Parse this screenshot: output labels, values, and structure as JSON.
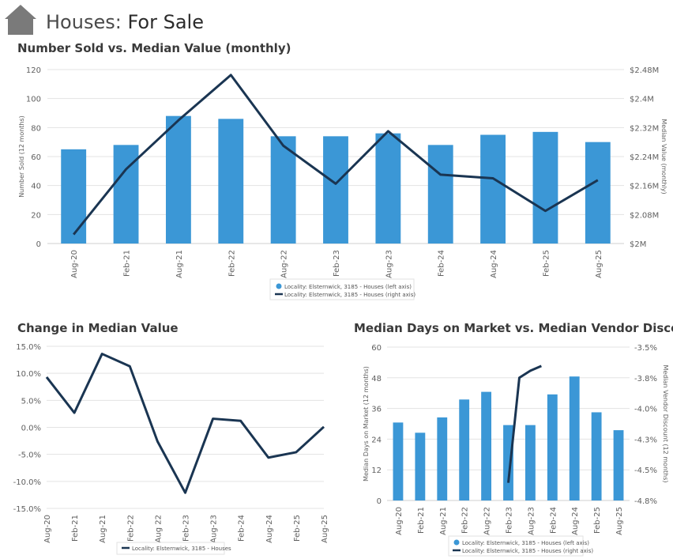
{
  "header": {
    "title_prefix": "Houses:",
    "title_main": "For Sale",
    "icon": "house-icon"
  },
  "colors": {
    "bar": "#3b97d6",
    "line": "#1a3552",
    "grid": "#e3e3e3",
    "axis_text": "#606060",
    "header_icon": "#7a7a7a"
  },
  "chart_data": [
    {
      "id": "sold-vs-value",
      "type": "bar+line",
      "title": "Number Sold vs. Median Value (monthly)",
      "categories": [
        "Aug-20",
        "Feb-21",
        "Aug-21",
        "Feb-22",
        "Aug-22",
        "Feb-23",
        "Aug-23",
        "Feb-24",
        "Aug-24",
        "Feb-25",
        "Aug-25"
      ],
      "series": [
        {
          "name": "Locality: Elsternwick, 3185 - Houses (left axis)",
          "kind": "bar",
          "axis": "left",
          "values": [
            65,
            68,
            88,
            86,
            74,
            74,
            76,
            68,
            75,
            77,
            70
          ]
        },
        {
          "name": "Locality: Elsternwick, 3185 - Houses (right axis)",
          "kind": "line",
          "axis": "right",
          "values": [
            2.025,
            2.205,
            2.34,
            2.465,
            2.27,
            2.165,
            2.31,
            2.19,
            2.18,
            2.09,
            2.175
          ]
        }
      ],
      "ylabel_left": "Number Sold (12 months)",
      "ylabel_right": "Median Value (monthly)",
      "ylim_left": [
        0,
        120
      ],
      "yticks_left": [
        "0",
        "20",
        "40",
        "60",
        "80",
        "100",
        "120"
      ],
      "ylim_right": [
        2.0,
        2.48
      ],
      "yticks_right": [
        "$2M",
        "$2.08M",
        "$2.16M",
        "$2.24M",
        "$2.32M",
        "$2.4M",
        "$2.48M"
      ]
    },
    {
      "id": "change-median",
      "type": "line",
      "title": "Change in Median Value",
      "categories": [
        "Aug-20",
        "Feb-21",
        "Aug-21",
        "Feb-22",
        "Aug 22",
        "Feb-23",
        "Aug-23",
        "Feb-24",
        "Aug-24",
        "Feb-25",
        "Aug-25"
      ],
      "series": [
        {
          "name": "Locality: Elsternwick, 3185 - Houses",
          "values": [
            9.3,
            2.7,
            13.6,
            11.3,
            -2.6,
            -12.1,
            1.6,
            1.2,
            -5.6,
            -4.6,
            0.1
          ]
        }
      ],
      "ylim": [
        -15,
        15
      ],
      "yticks": [
        "-15.0%",
        "-10.0%",
        "-5.0%",
        "0.0%",
        "5.0%",
        "10.0%",
        "15.0%"
      ]
    },
    {
      "id": "days-vs-discount",
      "type": "bar+line",
      "title": "Median Days on Market vs. Median Vendor Discount",
      "categories": [
        "Aug-20",
        "Feb-21",
        "Aug-21",
        "Feb-22",
        "Aug-22",
        "Feb-23",
        "Aug-23",
        "Feb-24",
        "Aug-24",
        "Feb-25",
        "Aug-25"
      ],
      "bar_series": {
        "name": "Locality: Elsternwick, 3185 - Houses (left axis)",
        "x": [
          0,
          0.5,
          1,
          1.5,
          2,
          2.5,
          3,
          3.5,
          4,
          4.5,
          5,
          5.5,
          6,
          6.5,
          7,
          7.5,
          8,
          8.5,
          9,
          9.5,
          10
        ],
        "values": [
          30.5,
          null,
          26.5,
          null,
          32.5,
          null,
          39.5,
          null,
          42.5,
          null,
          29.5,
          null,
          29.5,
          null,
          41.5,
          null,
          48.5,
          null,
          34.5,
          null,
          27.5
        ]
      },
      "line_series": {
        "name": "Locality: Elsternwick, 3185 - Houses (right axis)",
        "x": [
          5.0,
          5.5,
          6.0,
          6.5
        ],
        "values": [
          -4.65,
          -3.76,
          -3.7,
          -3.66
        ]
      },
      "ylabel_left": "Median Days on Market (12 months)",
      "ylabel_right": "Median Vendor Discount (12 months)",
      "ylim_left": [
        0,
        60
      ],
      "yticks_left": [
        "0",
        "12",
        "24",
        "36",
        "48",
        "60"
      ],
      "ylim_right": [
        -4.8,
        -3.5
      ],
      "yticks_right": [
        "-4.8%",
        "-4.5%",
        "-4.3%",
        "-4.0%",
        "-3.8%",
        "-3.5%"
      ]
    }
  ]
}
